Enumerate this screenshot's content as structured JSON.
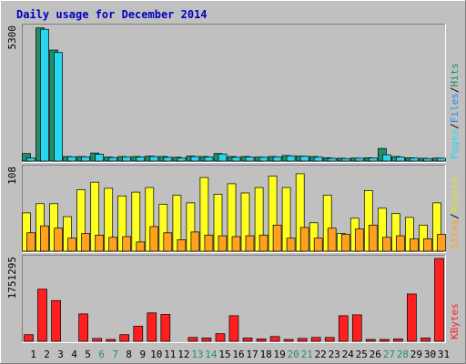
{
  "title": "Daily usage for December 2014",
  "chart_data": {
    "type": "bar",
    "title": "Daily usage for December 2014",
    "categories": [
      "1",
      "2",
      "3",
      "4",
      "5",
      "6",
      "7",
      "8",
      "9",
      "10",
      "11",
      "12",
      "13",
      "14",
      "15",
      "16",
      "17",
      "18",
      "19",
      "20",
      "21",
      "22",
      "23",
      "24",
      "25",
      "26",
      "27",
      "28",
      "29",
      "30",
      "31"
    ],
    "weekend_days": [
      "6",
      "7",
      "13",
      "14",
      "20",
      "21",
      "27",
      "28"
    ],
    "panels": [
      {
        "id": "pages-files-hits",
        "ymax_label": "5300",
        "ymax": 5300,
        "axis_label_parts": [
          "Pages",
          "/",
          "Files",
          "/",
          "Hits"
        ],
        "series": [
          {
            "name": "Hits",
            "color": "#1f8f6a",
            "values": [
              300,
              5280,
              4400,
              180,
              180,
              320,
              160,
              180,
              180,
              200,
              180,
              150,
              200,
              180,
              300,
              180,
              180,
              160,
              180,
              220,
              200,
              180,
              130,
              110,
              120,
              130,
              500,
              180,
              130,
              110,
              120
            ]
          },
          {
            "name": "Files",
            "color": "#29d6ef",
            "values": [
              120,
              5220,
              4300,
              170,
              170,
              270,
              140,
              170,
              160,
              180,
              150,
              120,
              180,
              160,
              280,
              150,
              160,
              150,
              170,
              210,
              190,
              160,
              110,
              100,
              110,
              120,
              250,
              160,
              120,
              100,
              110
            ]
          }
        ]
      },
      {
        "id": "visits-sites",
        "ymax_label": "108",
        "ymax": 108,
        "axis_label_parts": [
          "Sites",
          "/",
          "Visits"
        ],
        "series": [
          {
            "name": "Visits",
            "color": "#ffff1f",
            "values": [
              50,
              62,
              62,
              45,
              80,
              90,
              82,
              72,
              77,
              83,
              61,
              73,
              63,
              96,
              74,
              88,
              76,
              83,
              98,
              83,
              101,
              37,
              73,
              23,
              43,
              79,
              56,
              49,
              44,
              34,
              63
            ]
          },
          {
            "name": "Sites",
            "color": "#ffa01f",
            "values": [
              24,
              33,
              30,
              17,
              23,
              21,
              18,
              19,
              12,
              32,
              24,
              15,
              25,
              21,
              20,
              19,
              20,
              21,
              34,
              17,
              31,
              17,
              30,
              22,
              29,
              34,
              18,
              20,
              16,
              16,
              22
            ]
          }
        ]
      },
      {
        "id": "kbytes",
        "ymax_label": "1751295",
        "ymax": 1751295,
        "axis_label_parts": [
          "KBytes"
        ],
        "series": [
          {
            "name": "KBytes",
            "color": "#ff1f1f",
            "values": [
              140000,
              1100000,
              860000,
              0,
              580000,
              60000,
              30000,
              140000,
              320000,
              600000,
              570000,
              0,
              80000,
              70000,
              160000,
              540000,
              70000,
              50000,
              100000,
              30000,
              60000,
              80000,
              80000,
              540000,
              560000,
              10000,
              10000,
              50000,
              1000000,
              70000,
              1751295
            ]
          }
        ]
      }
    ]
  }
}
